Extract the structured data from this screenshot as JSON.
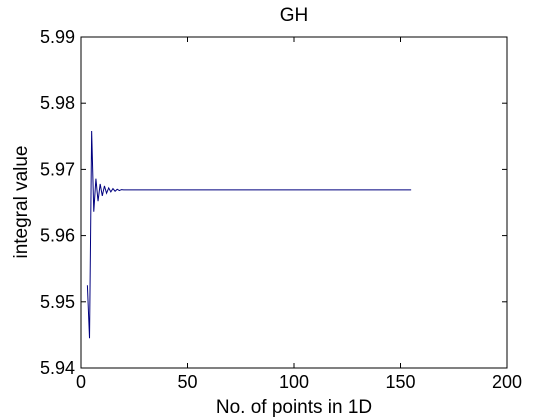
{
  "chart_data": {
    "type": "line",
    "title": "GH",
    "xlabel": "No. of points in 1D",
    "ylabel": "integral value",
    "xlim": [
      0,
      200
    ],
    "ylim": [
      5.94,
      5.99
    ],
    "xticks": [
      0,
      50,
      100,
      150,
      200
    ],
    "yticks": [
      5.94,
      5.95,
      5.96,
      5.97,
      5.98,
      5.99
    ],
    "xtick_labels": [
      "0",
      "50",
      "100",
      "150",
      "200"
    ],
    "ytick_labels": [
      "5.94",
      "5.95",
      "5.96",
      "5.97",
      "5.98",
      "5.99"
    ],
    "grid": false,
    "legend": "none",
    "series": [
      {
        "color": "#00007f",
        "x": [
          3,
          4,
          5,
          6,
          7,
          8,
          9,
          10,
          11,
          12,
          13,
          14,
          15,
          16,
          17,
          18,
          19,
          20,
          25,
          30,
          40,
          60,
          80,
          100,
          120,
          140,
          155
        ],
        "y": [
          5.9525,
          5.9445,
          5.9758,
          5.9636,
          5.9686,
          5.9652,
          5.9678,
          5.966,
          5.9675,
          5.9664,
          5.9672,
          5.9666,
          5.9671,
          5.9667,
          5.967,
          5.9668,
          5.96695,
          5.9669,
          5.9669,
          5.9669,
          5.9669,
          5.9669,
          5.9669,
          5.9669,
          5.9669,
          5.9669,
          5.9669
        ]
      }
    ]
  }
}
